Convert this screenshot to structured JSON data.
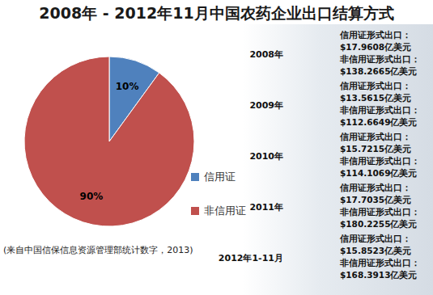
{
  "chart_data": {
    "type": "pie",
    "title": "2008年 - 2012年11月中国农药企业出口结算方式",
    "categories": [
      "信用证",
      "非信用证"
    ],
    "values": [
      10,
      90
    ],
    "value_labels": [
      "10%",
      "90%"
    ],
    "colors": [
      "#4f81bd",
      "#c0504d"
    ],
    "data_labels": true,
    "legend": "right",
    "source": "(来自中国信保信息资源管理部统计数字，2013)",
    "annotations": [
      {
        "year": "2008年",
        "lines": [
          "信用证形式出口：",
          "$17.9608亿美元",
          "非信用证形式出口：",
          "$138.2665亿美元"
        ]
      },
      {
        "year": "2009年",
        "lines": [
          "信用证形式出口：",
          "$13.5615亿美元",
          "非信用证形式出口：",
          "$112.6649亿美元"
        ]
      },
      {
        "year": "2010年",
        "lines": [
          "信用证形式出口：",
          "$15.7215亿美元",
          "非信用证形式出口：",
          "$114.1069亿美元"
        ]
      },
      {
        "year": "2011年",
        "lines": [
          "信用证形式出口：",
          "$17.7035亿美元",
          "非信用证形式出口：",
          "$180.2255亿美元"
        ]
      },
      {
        "year": "2012年1-11月",
        "lines": [
          "信用证形式出口：",
          "$15.8523亿美元",
          "非信用证形式出口：",
          "$168.3913亿美元"
        ]
      }
    ]
  }
}
